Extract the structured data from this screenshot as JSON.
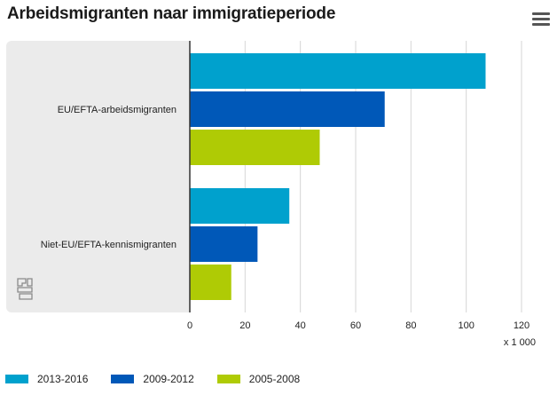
{
  "header": {
    "title": "Arbeidsmigranten naar immigratieperiode"
  },
  "logo_label": "cbs",
  "colors": {
    "plot_bg": "#ebebeb",
    "grid": "#d6d6d6",
    "axis": "#333333",
    "tick_text": "#222222"
  },
  "chart_data": {
    "type": "bar",
    "orientation": "horizontal",
    "title": "Arbeidsmigranten naar immigratieperiode",
    "categories": [
      "EU/EFTA-arbeidsmigranten",
      "Niet-EU/EFTA-kennismigranten"
    ],
    "series": [
      {
        "name": "2013-2016",
        "color": "#00a1cd",
        "values": [
          107,
          36
        ]
      },
      {
        "name": "2009-2012",
        "color": "#0058b8",
        "values": [
          70.5,
          24.5
        ]
      },
      {
        "name": "2005-2008",
        "color": "#afcb05",
        "values": [
          47,
          15
        ]
      }
    ],
    "xlim": [
      0,
      120
    ],
    "xticks": [
      0,
      20,
      40,
      60,
      80,
      100,
      120
    ],
    "unit_label": "x 1 000",
    "grid": true,
    "legend_position": "bottom-left"
  }
}
